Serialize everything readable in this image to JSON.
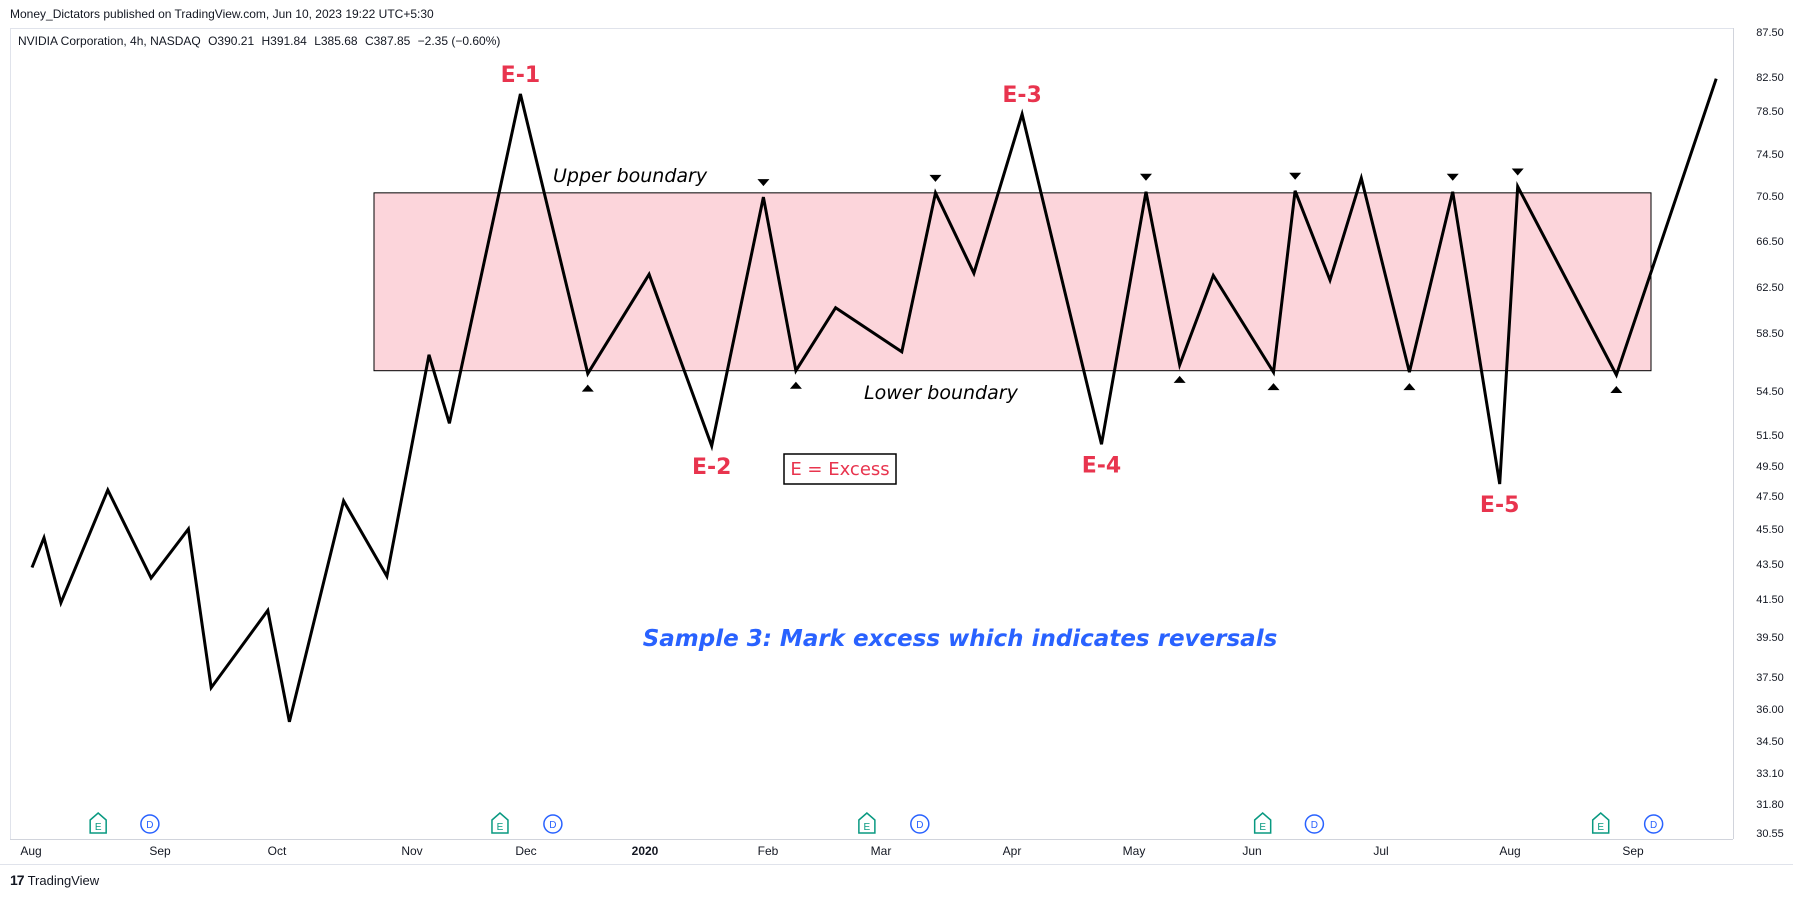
{
  "header": {
    "publisher_text": "Money_Dictators published on TradingView.com, Jun 10, 2023 19:22 UTC+5:30",
    "symbol": "NVIDIA Corporation, 4h, NASDAQ",
    "open": "O390.21",
    "high": "H391.84",
    "low": "L385.68",
    "close": "C387.85",
    "change": "−2.35 (−0.60%)"
  },
  "footer": {
    "logo_mark": "17",
    "logo_text": "TradingView"
  },
  "colors": {
    "line": "#000000",
    "range_fill": "#fcd5db",
    "excess_label": "#e8344e",
    "sample_text": "#2962ff",
    "earnings_badge": "#089981",
    "dividend_badge": "#2962ff",
    "axis_text": "#131722"
  },
  "chart_data": {
    "type": "line",
    "x_axis_labels": [
      "Aug",
      "Sep",
      "Oct",
      "Nov",
      "Dec",
      "2020",
      "Feb",
      "Mar",
      "Apr",
      "May",
      "Jun",
      "Jul",
      "Aug",
      "Sep"
    ],
    "y_axis_ticks": [
      "87.50",
      "82.50",
      "78.50",
      "74.50",
      "70.50",
      "66.50",
      "62.50",
      "58.50",
      "54.50",
      "51.50",
      "49.50",
      "47.50",
      "45.50",
      "43.50",
      "41.50",
      "39.50",
      "37.50",
      "36.00",
      "34.50",
      "33.10",
      "31.80",
      "30.55"
    ],
    "y_axis_values": [
      87.5,
      82.5,
      78.5,
      74.5,
      70.5,
      66.5,
      62.5,
      58.5,
      54.5,
      51.5,
      49.5,
      47.5,
      45.5,
      43.5,
      41.5,
      39.5,
      37.5,
      36.0,
      34.5,
      33.1,
      31.8,
      30.55
    ],
    "series": [
      {
        "points": [
          {
            "x": 0.0,
            "y": 43.3
          },
          {
            "x": 0.1,
            "y": 45.0
          },
          {
            "x": 0.24,
            "y": 41.3
          },
          {
            "x": 0.63,
            "y": 47.9
          },
          {
            "x": 0.99,
            "y": 42.7
          },
          {
            "x": 1.3,
            "y": 45.5
          },
          {
            "x": 1.49,
            "y": 37.0
          },
          {
            "x": 1.96,
            "y": 40.9
          },
          {
            "x": 2.14,
            "y": 35.4
          },
          {
            "x": 2.59,
            "y": 47.2
          },
          {
            "x": 2.95,
            "y": 42.8
          },
          {
            "x": 3.3,
            "y": 57.0
          },
          {
            "x": 3.47,
            "y": 52.3
          },
          {
            "x": 4.06,
            "y": 80.5
          },
          {
            "x": 4.62,
            "y": 55.7
          },
          {
            "x": 5.13,
            "y": 63.6
          },
          {
            "x": 5.65,
            "y": 50.8
          },
          {
            "x": 6.08,
            "y": 70.4
          },
          {
            "x": 6.35,
            "y": 55.9
          },
          {
            "x": 6.68,
            "y": 60.7
          },
          {
            "x": 7.23,
            "y": 57.2
          },
          {
            "x": 7.51,
            "y": 70.8
          },
          {
            "x": 7.83,
            "y": 63.7
          },
          {
            "x": 8.23,
            "y": 78.2
          },
          {
            "x": 8.89,
            "y": 50.9
          },
          {
            "x": 9.26,
            "y": 70.9
          },
          {
            "x": 9.54,
            "y": 56.3
          },
          {
            "x": 9.82,
            "y": 63.5
          },
          {
            "x": 10.32,
            "y": 55.8
          },
          {
            "x": 10.5,
            "y": 71.0
          },
          {
            "x": 10.79,
            "y": 63.1
          },
          {
            "x": 11.05,
            "y": 72.2
          },
          {
            "x": 11.45,
            "y": 55.8
          },
          {
            "x": 11.81,
            "y": 70.9
          },
          {
            "x": 12.2,
            "y": 48.3
          },
          {
            "x": 12.35,
            "y": 71.4
          },
          {
            "x": 13.17,
            "y": 55.6
          },
          {
            "x": 14.0,
            "y": 82.3
          }
        ]
      }
    ],
    "range_box": {
      "y_top": 70.8,
      "y_bottom": 55.9,
      "x_start": 3.06,
      "x_end": 14.0
    },
    "range_labels": {
      "upper": "Upper boundary",
      "lower": "Lower boundary"
    },
    "excess_labels": [
      {
        "text": "E-1",
        "x": 4.06,
        "y": 80.5
      },
      {
        "text": "E-2",
        "x": 5.65,
        "y": 50.8
      },
      {
        "text": "E-3",
        "x": 8.23,
        "y": 78.2
      },
      {
        "text": "E-4",
        "x": 8.89,
        "y": 50.9
      },
      {
        "text": "E-5",
        "x": 12.2,
        "y": 48.3
      }
    ],
    "down_markers_x": [
      6.08,
      7.51,
      9.26,
      10.5,
      11.81,
      12.35
    ],
    "up_markers_x": [
      4.62,
      6.35,
      9.54,
      10.32,
      11.45,
      13.17
    ],
    "legend_box_text": "E = Excess",
    "sample_text": "Sample 3: Mark excess which indicates reversals",
    "event_badges": [
      {
        "type": "E",
        "x": 0.55
      },
      {
        "type": "D",
        "x": 0.98
      },
      {
        "type": "E",
        "x": 3.89
      },
      {
        "type": "D",
        "x": 4.33
      },
      {
        "type": "E",
        "x": 6.94
      },
      {
        "type": "D",
        "x": 7.38
      },
      {
        "type": "E",
        "x": 10.23
      },
      {
        "type": "D",
        "x": 10.66
      },
      {
        "type": "E",
        "x": 13.04
      },
      {
        "type": "D",
        "x": 13.48
      }
    ]
  }
}
